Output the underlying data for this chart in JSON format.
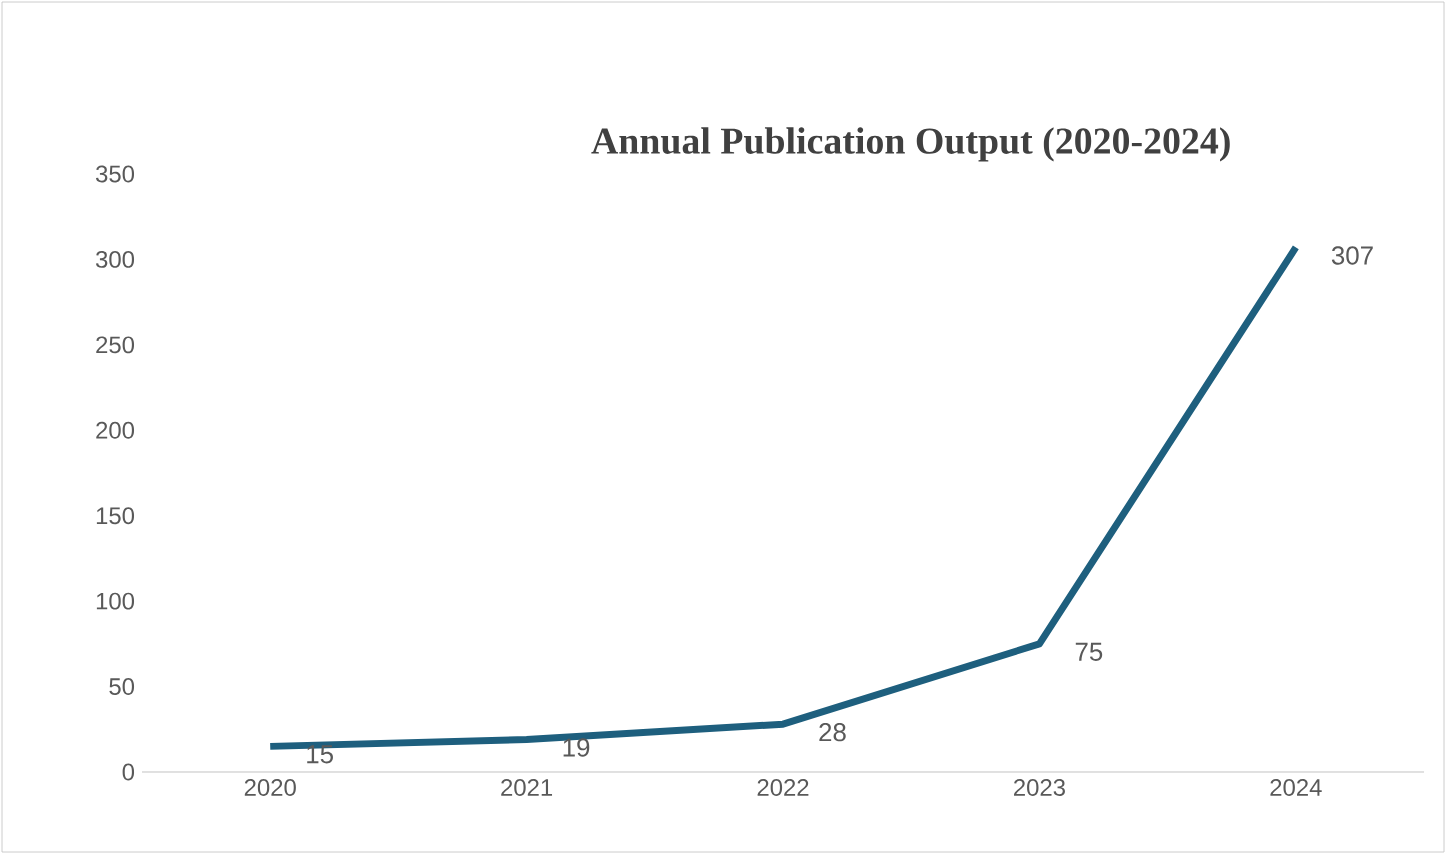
{
  "chart_data": {
    "type": "line",
    "title": "Annual Publication Output (2020-2024)",
    "categories": [
      "2020",
      "2021",
      "2022",
      "2023",
      "2024"
    ],
    "series": [
      {
        "color": "#1e5f7e",
        "values": [
          15,
          19,
          28,
          75,
          307
        ]
      }
    ],
    "ylim": [
      0,
      350
    ],
    "yticks": [
      0,
      50,
      100,
      150,
      200,
      250,
      300,
      350
    ],
    "data_labels": true,
    "grid": false,
    "marker": "none",
    "line_style": "solid"
  }
}
